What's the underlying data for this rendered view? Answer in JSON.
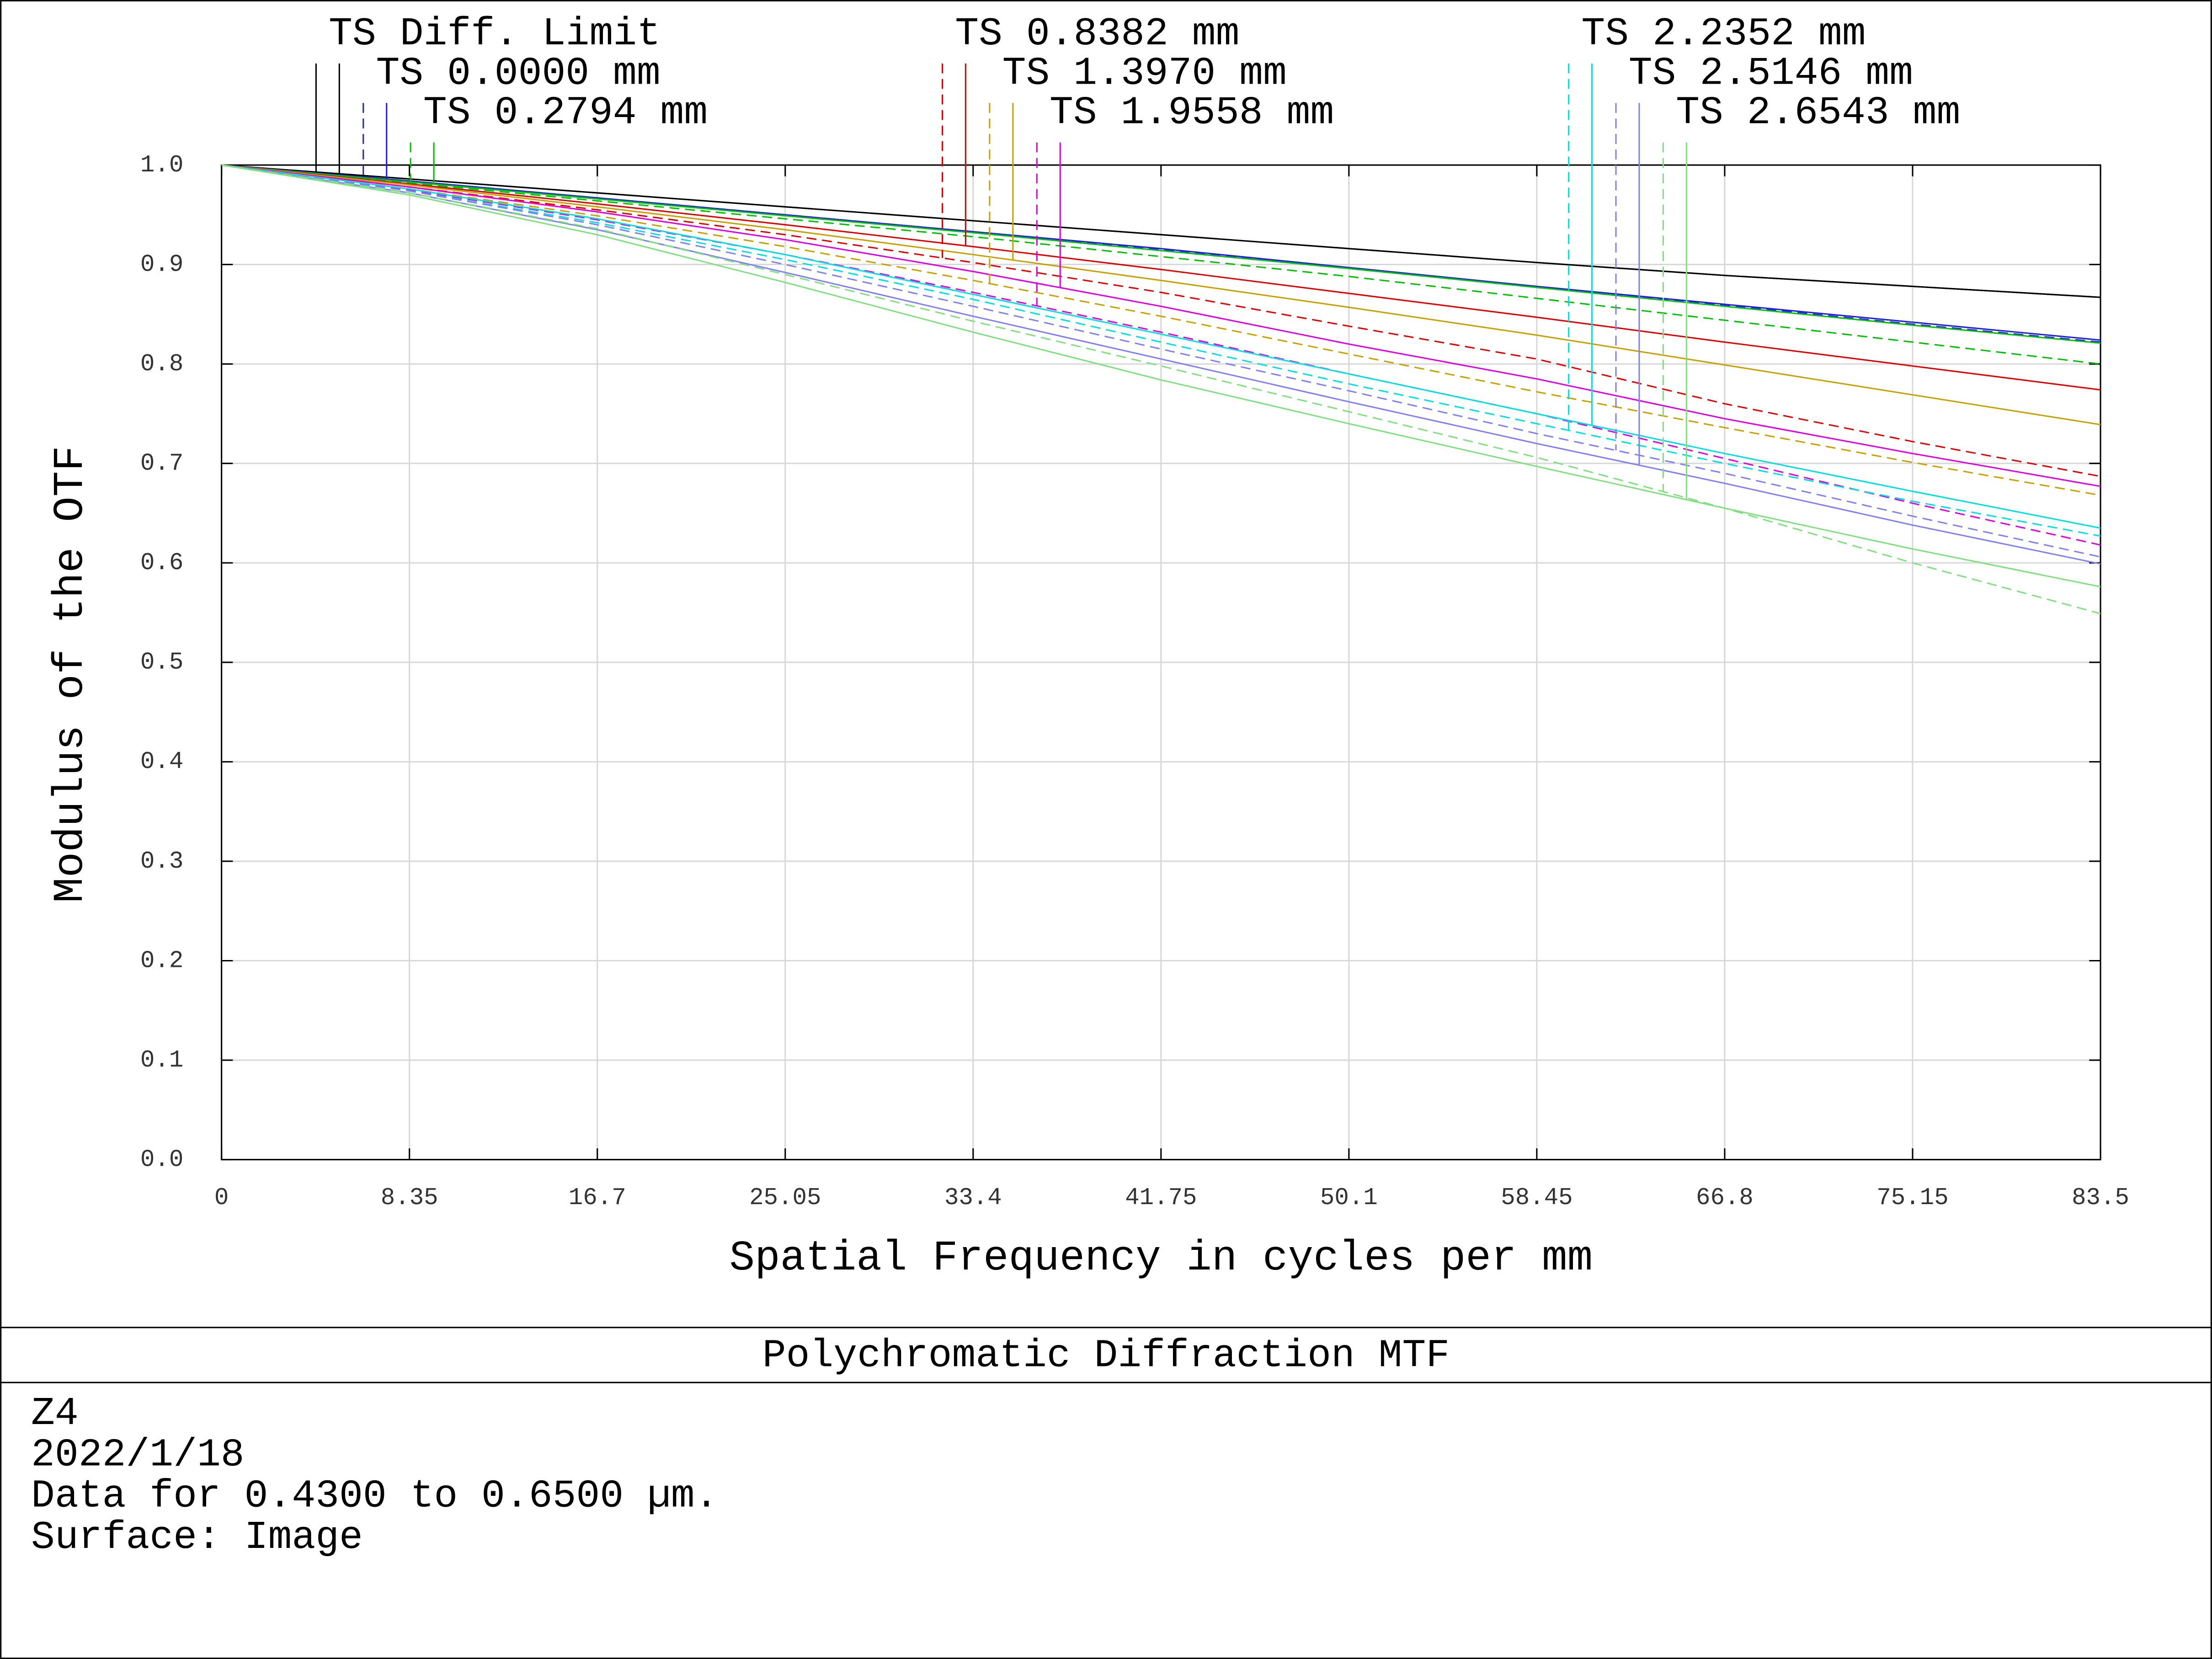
{
  "chart_data": {
    "type": "line",
    "xlabel": "Spatial Frequency in cycles per mm",
    "ylabel": "Modulus of the OTF",
    "x": [
      0,
      8.35,
      16.7,
      25.05,
      33.4,
      41.75,
      50.1,
      58.45,
      66.8,
      75.15,
      83.5
    ],
    "xlim": [
      0,
      83.5
    ],
    "xticks": [
      0,
      8.35,
      16.7,
      25.05,
      33.4,
      41.75,
      50.1,
      58.45,
      66.8,
      75.15,
      83.5
    ],
    "ylim": [
      0,
      1
    ],
    "yticks": [
      {
        "value": 0,
        "label": "0.0"
      },
      0.1,
      0.2,
      0.3,
      0.4,
      0.5,
      0.6,
      0.7,
      0.8,
      0.9,
      {
        "value": 1,
        "label": "1.0"
      }
    ],
    "grid": true,
    "tangential_style": "dashed",
    "series": [
      {
        "name": "TS Diff. Limit",
        "color": "#000000",
        "line_style": "solid",
        "tangential": [
          1,
          0.986,
          0.972,
          0.958,
          0.944,
          0.93,
          0.916,
          0.902,
          0.889,
          0.878,
          0.867
        ],
        "sagittal": [
          1,
          0.986,
          0.972,
          0.958,
          0.944,
          0.93,
          0.916,
          0.902,
          0.889,
          0.878,
          0.867
        ]
      },
      {
        "name": "TS 0.0000 mm",
        "color": "#2020e0",
        "tangential": [
          1,
          0.984,
          0.967,
          0.95,
          0.933,
          0.915,
          0.896,
          0.877,
          0.859,
          0.84,
          0.822
        ],
        "sagittal": [
          1,
          0.984,
          0.967,
          0.95,
          0.933,
          0.916,
          0.897,
          0.878,
          0.86,
          0.842,
          0.824
        ]
      },
      {
        "name": "TS 0.2794 mm",
        "color": "#00c000",
        "tangential": [
          1,
          0.982,
          0.964,
          0.946,
          0.928,
          0.908,
          0.888,
          0.866,
          0.844,
          0.822,
          0.8
        ],
        "sagittal": [
          1,
          0.983,
          0.966,
          0.949,
          0.932,
          0.914,
          0.896,
          0.877,
          0.858,
          0.839,
          0.821
        ]
      },
      {
        "name": "TS 0.8382 mm",
        "color": "#e00000",
        "tangential": [
          1,
          0.978,
          0.955,
          0.93,
          0.902,
          0.872,
          0.838,
          0.805,
          0.76,
          0.722,
          0.687
        ],
        "sagittal": [
          1,
          0.981,
          0.961,
          0.94,
          0.918,
          0.895,
          0.871,
          0.847,
          0.822,
          0.798,
          0.774
        ]
      },
      {
        "name": "TS 1.3970 mm",
        "color": "#c8a000",
        "tangential": [
          1,
          0.976,
          0.949,
          0.918,
          0.884,
          0.848,
          0.81,
          0.772,
          0.736,
          0.701,
          0.668
        ],
        "sagittal": [
          1,
          0.98,
          0.958,
          0.935,
          0.91,
          0.884,
          0.857,
          0.829,
          0.799,
          0.769,
          0.739
        ]
      },
      {
        "name": "TS 1.9558 mm",
        "color": "#e000e0",
        "tangential": [
          1,
          0.975,
          0.945,
          0.91,
          0.872,
          0.832,
          0.79,
          0.75,
          0.705,
          0.66,
          0.618
        ],
        "sagittal": [
          1,
          0.978,
          0.953,
          0.925,
          0.893,
          0.858,
          0.82,
          0.785,
          0.745,
          0.71,
          0.677
        ]
      },
      {
        "name": "TS 2.2352 mm",
        "color": "#00e0e0",
        "tangential": [
          1,
          0.974,
          0.942,
          0.905,
          0.865,
          0.822,
          0.78,
          0.74,
          0.7,
          0.662,
          0.627
        ],
        "sagittal": [
          1,
          0.976,
          0.946,
          0.91,
          0.87,
          0.83,
          0.79,
          0.75,
          0.71,
          0.672,
          0.635
        ]
      },
      {
        "name": "TS 2.5146 mm",
        "color": "#8080f0",
        "tangential": [
          1,
          0.974,
          0.94,
          0.9,
          0.858,
          0.815,
          0.773,
          0.73,
          0.69,
          0.647,
          0.606
        ],
        "sagittal": [
          1,
          0.972,
          0.935,
          0.892,
          0.848,
          0.805,
          0.762,
          0.72,
          0.68,
          0.638,
          0.599
        ]
      },
      {
        "name": "TS 2.6543 mm",
        "color": "#80e080",
        "tangential": [
          1,
          0.972,
          0.936,
          0.89,
          0.843,
          0.798,
          0.752,
          0.706,
          0.655,
          0.6,
          0.549
        ],
        "sagittal": [
          1,
          0.97,
          0.93,
          0.882,
          0.832,
          0.784,
          0.74,
          0.697,
          0.655,
          0.614,
          0.576
        ]
      }
    ]
  },
  "footer": {
    "title": "Polychromatic Diffraction MTF",
    "lines": [
      "Z4",
      "2022/1/18",
      "Data for 0.4300 to 0.6500 µm.",
      "Surface: Image"
    ]
  }
}
